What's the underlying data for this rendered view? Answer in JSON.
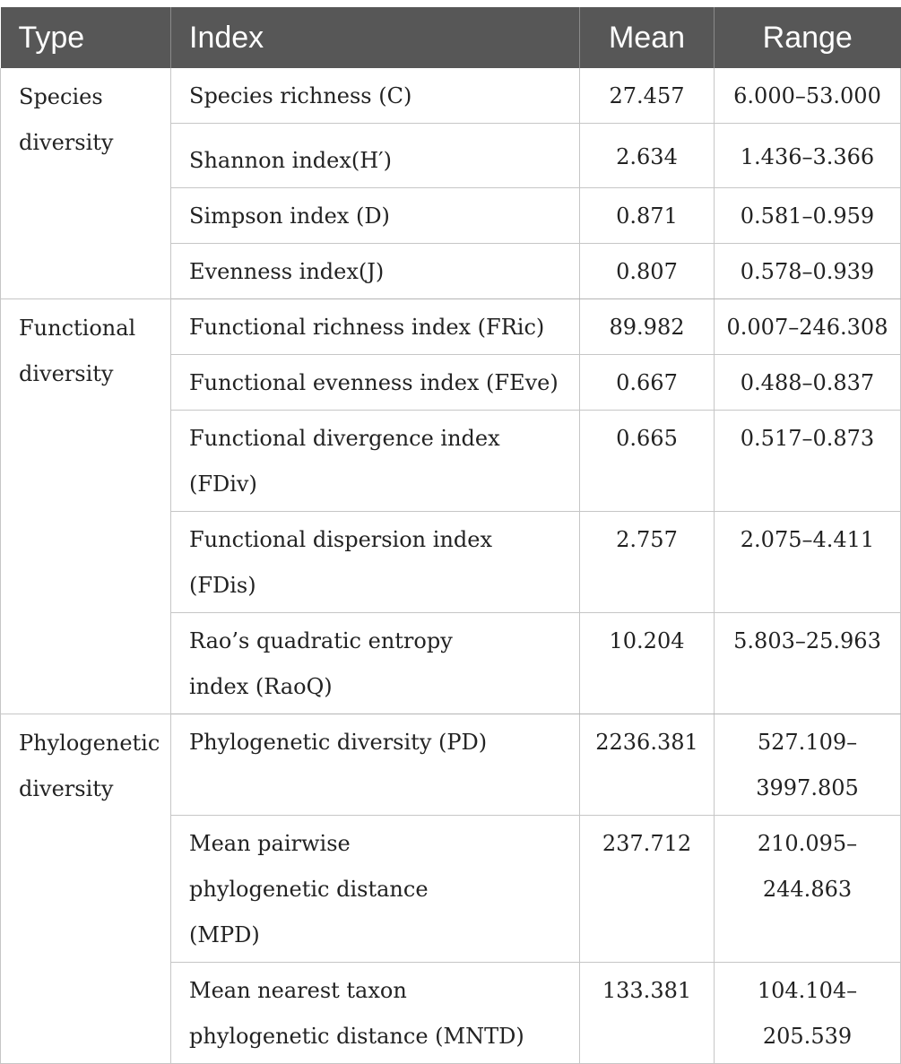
{
  "table": {
    "headers": {
      "type": "Type",
      "index": "Index",
      "mean": "Mean",
      "range": "Range"
    },
    "groups": [
      {
        "type": "Species diversity",
        "rows": [
          {
            "index": "Species richness (C)",
            "mean": "27.457",
            "range": "6.000–53.000"
          },
          {
            "index": "Shannon index(H′)",
            "mean": "2.634",
            "range": "1.436–3.366"
          },
          {
            "index": "Simpson index (D)",
            "mean": "0.871",
            "range": "0.581–0.959"
          },
          {
            "index": "Evenness index(J)",
            "mean": "0.807",
            "range": "0.578–0.939"
          }
        ]
      },
      {
        "type": "Functional diversity",
        "rows": [
          {
            "index": "Functional richness index (FRic)",
            "mean": "89.982",
            "range": "0.007–246.308"
          },
          {
            "index": "Functional evenness index (FEve)",
            "mean": "0.667",
            "range": "0.488–0.837"
          },
          {
            "index": "Functional divergence index (FDiv)",
            "mean": "0.665",
            "range": "0.517–0.873"
          },
          {
            "index": "Functional dispersion index (FDis)",
            "mean": "2.757",
            "range": "2.075–4.411"
          },
          {
            "index": "Rao’s quadratic entropy index (RaoQ)",
            "mean": "10.204",
            "range": "5.803–25.963"
          }
        ]
      },
      {
        "type": "Phylogenetic diversity",
        "rows": [
          {
            "index": "Phylogenetic diversity (PD)",
            "mean": "2236.381",
            "range": "527.109–3997.805"
          },
          {
            "index": "Mean pairwise phylogenetic distance (MPD)",
            "mean": "237.712",
            "range": "210.095–244.863"
          },
          {
            "index": "Mean nearest taxon phylogenetic distance (MNTD)",
            "mean": "133.381",
            "range": "104.104–205.539"
          }
        ]
      }
    ]
  }
}
